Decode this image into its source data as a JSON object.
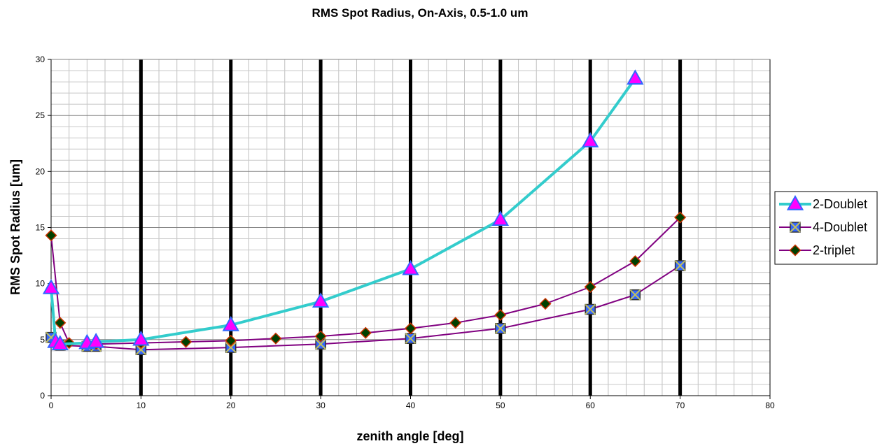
{
  "chart_data": {
    "type": "line",
    "title": "RMS Spot Radius, On-Axis, 0.5-1.0 um",
    "xlabel": "zenith angle [deg]",
    "ylabel": "RMS Spot Radius [um]",
    "xlim": [
      0,
      80
    ],
    "ylim": [
      0,
      30
    ],
    "xticks": [
      0,
      10,
      20,
      30,
      40,
      50,
      60,
      70,
      80
    ],
    "yticks": [
      0,
      5,
      10,
      15,
      20,
      25,
      30
    ],
    "grid": true,
    "major_vertical_lines": [
      10,
      20,
      30,
      40,
      50,
      60,
      70
    ],
    "legend_position": "right",
    "series": [
      {
        "name": "2-Doublet",
        "line_color": "#33CCCC",
        "marker": "triangle",
        "marker_fill": "#FF00FF",
        "marker_stroke": "#3366FF",
        "points": [
          [
            0,
            9.6
          ],
          [
            0.5,
            4.8
          ],
          [
            1,
            4.6
          ],
          [
            4,
            4.7
          ],
          [
            5,
            4.8
          ],
          [
            10,
            5.0
          ],
          [
            20,
            6.3
          ],
          [
            30,
            8.4
          ],
          [
            40,
            11.3
          ],
          [
            50,
            15.7
          ],
          [
            60,
            22.7
          ],
          [
            65,
            28.3
          ]
        ]
      },
      {
        "name": "4-Doublet",
        "line_color": "#800080",
        "marker": "square-x",
        "marker_fill": "#3366FF",
        "marker_stroke": "#333333",
        "points": [
          [
            0,
            5.2
          ],
          [
            1,
            4.5
          ],
          [
            4,
            4.4
          ],
          [
            5,
            4.4
          ],
          [
            10,
            4.1
          ],
          [
            20,
            4.3
          ],
          [
            30,
            4.6
          ],
          [
            40,
            5.1
          ],
          [
            50,
            6.0
          ],
          [
            60,
            7.7
          ],
          [
            65,
            9.0
          ],
          [
            70,
            11.6
          ]
        ]
      },
      {
        "name": "2-triplet",
        "line_color": "#800080",
        "marker": "diamond",
        "marker_fill": "#004000",
        "marker_stroke": "#CC3300",
        "points": [
          [
            0,
            14.3
          ],
          [
            1,
            6.5
          ],
          [
            2,
            4.7
          ],
          [
            5,
            4.6
          ],
          [
            10,
            4.7
          ],
          [
            15,
            4.8
          ],
          [
            20,
            4.9
          ],
          [
            25,
            5.1
          ],
          [
            30,
            5.3
          ],
          [
            35,
            5.6
          ],
          [
            40,
            6.0
          ],
          [
            45,
            6.5
          ],
          [
            50,
            7.2
          ],
          [
            55,
            8.2
          ],
          [
            60,
            9.7
          ],
          [
            65,
            12.0
          ],
          [
            70,
            15.9
          ]
        ]
      }
    ]
  }
}
